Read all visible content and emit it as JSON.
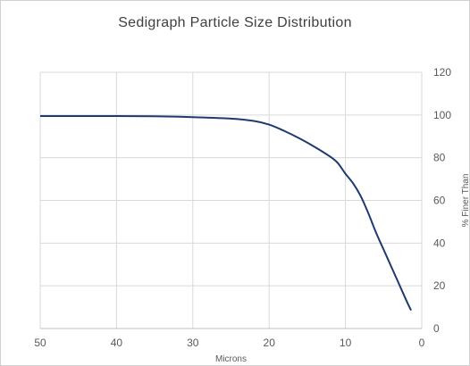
{
  "chart_data": {
    "type": "line",
    "title": "Sedigraph Particle Size Distribution",
    "xlabel": "Microns",
    "ylabel": "% Finer Than",
    "xlim": [
      50,
      0
    ],
    "ylim": [
      0,
      120
    ],
    "x_reversed": true,
    "x_ticks": [
      50,
      40,
      30,
      20,
      10,
      0
    ],
    "y_ticks": [
      0,
      20,
      40,
      60,
      80,
      100,
      120
    ],
    "y_axis_position": "right",
    "grid": true,
    "line_color": "#1f3a6e",
    "series": [
      {
        "points": [
          [
            50,
            99.5
          ],
          [
            45,
            99.5
          ],
          [
            40,
            99.5
          ],
          [
            35,
            99.4
          ],
          [
            30,
            99.0
          ],
          [
            25,
            98.3
          ],
          [
            22,
            97.2
          ],
          [
            20,
            95.5
          ],
          [
            18,
            92.5
          ],
          [
            16,
            89.0
          ],
          [
            14,
            85.0
          ],
          [
            12,
            80.5
          ],
          [
            11,
            77.5
          ],
          [
            10,
            72.5
          ],
          [
            9,
            68.0
          ],
          [
            8,
            62.0
          ],
          [
            7,
            54.0
          ],
          [
            6,
            45.0
          ],
          [
            5,
            37.0
          ],
          [
            4,
            29.0
          ],
          [
            3,
            21.0
          ],
          [
            2,
            13.0
          ],
          [
            1.4,
            8.5
          ]
        ]
      }
    ]
  }
}
